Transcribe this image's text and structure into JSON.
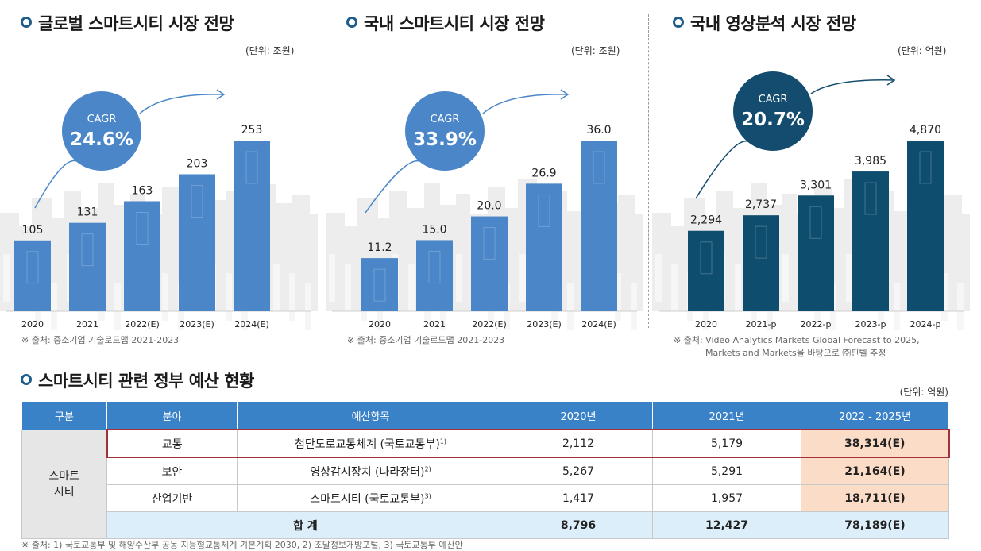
{
  "panels": [
    {
      "title": "글로벌 스마트시티 시장 전망",
      "unit": "(단위: 조원)",
      "cagr_label": "CAGR",
      "cagr_value": "24.6%",
      "source": "※ 출처: 중소기업 기술로드맵 2021-2023",
      "source2": "",
      "color": "#4a86c8",
      "circle_color": "#4a86c8"
    },
    {
      "title": "국내 스마트시티 시장 전망",
      "unit": "(단위: 조원)",
      "cagr_label": "CAGR",
      "cagr_value": "33.9%",
      "source": "※ 출처: 중소기업 기술로드맵 2021-2023",
      "source2": "",
      "color": "#4a86c8",
      "circle_color": "#4a86c8"
    },
    {
      "title": "국내 영상분석 시장 전망",
      "unit": "(단위: 억원)",
      "cagr_label": "CAGR",
      "cagr_value": "20.7%",
      "source": "※ 출처: Video Analytics Markets Global Forecast to 2025,",
      "source2": "Markets and Markets을 바탕으로 ㈜핀텔 추정",
      "color": "#0f4d6e",
      "circle_color": "#134c6e"
    }
  ],
  "chart_data": [
    {
      "type": "bar",
      "title": "글로벌 스마트시티 시장 전망",
      "ylabel": "조원",
      "categories": [
        "2020",
        "2021",
        "2022(E)",
        "2023(E)",
        "2024(E)"
      ],
      "values": [
        105,
        131,
        163,
        203,
        253
      ],
      "labels": [
        "105",
        "131",
        "163",
        "203",
        "253"
      ],
      "ylim": [
        0,
        253
      ]
    },
    {
      "type": "bar",
      "title": "국내 스마트시티 시장 전망",
      "ylabel": "조원",
      "categories": [
        "2020",
        "2021",
        "2022(E)",
        "2023(E)",
        "2024(E)"
      ],
      "values": [
        11.2,
        15.0,
        20.0,
        26.9,
        36.0
      ],
      "labels": [
        "11.2",
        "15.0",
        "20.0",
        "26.9",
        "36.0"
      ],
      "ylim": [
        0,
        36.0
      ]
    },
    {
      "type": "bar",
      "title": "국내 영상분석 시장 전망",
      "ylabel": "억원",
      "categories": [
        "2020",
        "2021-p",
        "2022-p",
        "2023-p",
        "2024-p"
      ],
      "values": [
        2294,
        2737,
        3301,
        3985,
        4870
      ],
      "labels": [
        "2,294",
        "2,737",
        "3,301",
        "3,985",
        "4,870"
      ],
      "ylim": [
        0,
        4870
      ]
    }
  ],
  "budget": {
    "title": "스마트시티 관련 정부 예산 현황",
    "unit": "(단위: 억원)",
    "headers": [
      "구분",
      "분야",
      "예산항목",
      "2020년",
      "2021년",
      "2022 - 2025년"
    ],
    "group_line1": "스마트",
    "group_line2": "시티",
    "rows": [
      {
        "field": "교통",
        "item": "첨단도로교통체계 (국토교통부)",
        "note": "1)",
        "y2020": "2,112",
        "y2021": "5,179",
        "y2022": "38,314(E)"
      },
      {
        "field": "보안",
        "item": "영상감시장치 (나라장터)",
        "note": "2)",
        "y2020": "5,267",
        "y2021": "5,291",
        "y2022": "21,164(E)"
      },
      {
        "field": "산업기반",
        "item": "스마트시티 (국토교통부)",
        "note": "3)",
        "y2020": "1,417",
        "y2021": "1,957",
        "y2022": "18,711(E)"
      }
    ],
    "total": {
      "label": "합 계",
      "y2020": "8,796",
      "y2021": "12,427",
      "y2022": "78,189(E)"
    },
    "footnote": "※ 출처: 1) 국토교통부 및 해양수산부 공동 지능형교통체계 기본계획 2030,  2) 조달정보개방포털,  3) 국토교통부 예산안"
  }
}
